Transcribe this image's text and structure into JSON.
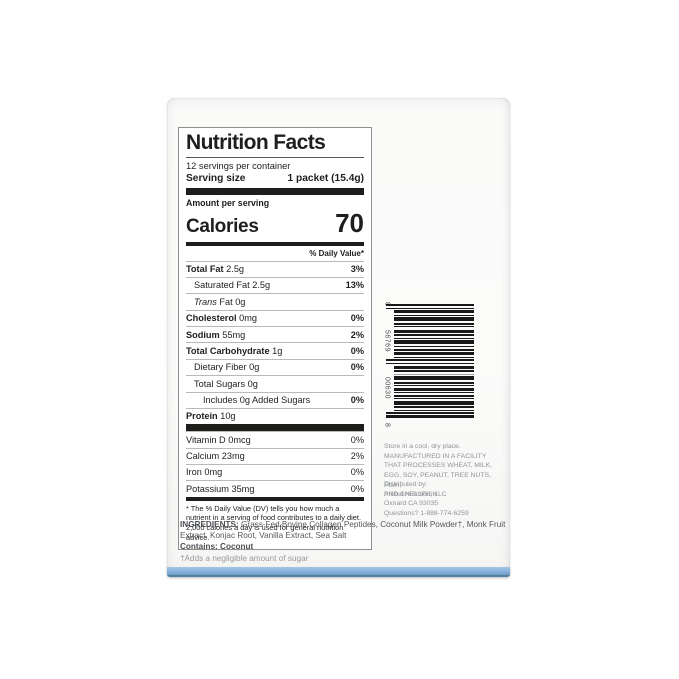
{
  "colors": {
    "accent_blue": "#85b2db",
    "accent_blue_dark": "#54809f",
    "label_ink": "#1e1e1c",
    "fine_print_gray": "#8f9498"
  },
  "package": {
    "nutrition_label": {
      "title": "Nutrition Facts",
      "servings_per_container": "12 servings per container",
      "serving_size_label": "Serving size",
      "serving_size_value": "1 packet (15.4g)",
      "amount_per_serving": "Amount per serving",
      "calories_label": "Calories",
      "calories_value": "70",
      "daily_value_header": "% Daily Value*",
      "macronutrients": [
        {
          "name": "Total Fat",
          "amount": "2.5g",
          "dv": "3%",
          "name_bold": true,
          "dv_bold": true,
          "indent": 0
        },
        {
          "name": "Saturated Fat",
          "amount": "2.5g",
          "dv": "13%",
          "name_bold": false,
          "dv_bold": true,
          "indent": 1
        },
        {
          "name": "Trans",
          "amount": "Fat 0g",
          "dv": "",
          "name_bold": false,
          "italic_name": true,
          "indent": 1
        },
        {
          "name": "Cholesterol",
          "amount": "0mg",
          "dv": "0%",
          "name_bold": true,
          "dv_bold": true,
          "indent": 0
        },
        {
          "name": "Sodium",
          "amount": "55mg",
          "dv": "2%",
          "name_bold": true,
          "dv_bold": true,
          "indent": 0
        },
        {
          "name": "Total Carbohydrate",
          "amount": "1g",
          "dv": "0%",
          "name_bold": true,
          "dv_bold": true,
          "indent": 0
        },
        {
          "name": "Dietary Fiber",
          "amount": "0g",
          "dv": "0%",
          "name_bold": false,
          "dv_bold": true,
          "indent": 1
        },
        {
          "name": "Total Sugars",
          "amount": "0g",
          "dv": "",
          "name_bold": false,
          "indent": 1
        },
        {
          "name": "Includes 0g Added Sugars",
          "amount": "",
          "dv": "0%",
          "name_bold": false,
          "dv_bold": true,
          "indent": 2
        },
        {
          "name": "Protein",
          "amount": "10g",
          "dv": "",
          "name_bold": true,
          "indent": 0
        }
      ],
      "micronutrients": [
        {
          "name": "Vitamin D",
          "amount": "0mcg",
          "dv": "0%",
          "name_bold": false,
          "dv_bold": false,
          "indent": 0
        },
        {
          "name": "Calcium",
          "amount": "23mg",
          "dv": "2%",
          "name_bold": false,
          "dv_bold": false,
          "indent": 0
        },
        {
          "name": "Iron",
          "amount": "0mg",
          "dv": "0%",
          "name_bold": false,
          "dv_bold": false,
          "indent": 0
        },
        {
          "name": "Potassium",
          "amount": "35mg",
          "dv": "0%",
          "name_bold": false,
          "dv_bold": false,
          "indent": 0
        }
      ],
      "footnote": "* The % Daily Value (DV) tells you how much a nutrient in a serving of food contributes to a daily diet. 2,000 calories a day is used for general nutrition advice."
    },
    "barcode": {
      "digits": [
        "8",
        "56769",
        "00630",
        "8"
      ],
      "bars": [
        {
          "w": 2,
          "g": 2,
          "e": 1
        },
        {
          "w": 1,
          "g": 1,
          "e": 1
        },
        {
          "w": 3,
          "g": 2
        },
        {
          "w": 1,
          "g": 1
        },
        {
          "w": 4,
          "g": 2
        },
        {
          "w": 2,
          "g": 1
        },
        {
          "w": 1,
          "g": 3
        },
        {
          "w": 3,
          "g": 1
        },
        {
          "w": 2,
          "g": 2
        },
        {
          "w": 1,
          "g": 1
        },
        {
          "w": 4,
          "g": 2
        },
        {
          "w": 1,
          "g": 2
        },
        {
          "w": 2,
          "g": 1
        },
        {
          "w": 3,
          "g": 2
        },
        {
          "w": 1,
          "g": 1
        },
        {
          "w": 2,
          "g": 2,
          "e": 1
        },
        {
          "w": 1,
          "g": 2,
          "e": 1
        },
        {
          "w": 3,
          "g": 1
        },
        {
          "w": 2,
          "g": 2
        },
        {
          "w": 1,
          "g": 1,
          "c": 1
        },
        {
          "w": 4,
          "g": 2
        },
        {
          "w": 2,
          "g": 1
        },
        {
          "w": 1,
          "g": 2
        },
        {
          "w": 3,
          "g": 1
        },
        {
          "w": 1,
          "g": 2
        },
        {
          "w": 2,
          "g": 1
        },
        {
          "w": 1,
          "g": 2
        },
        {
          "w": 4,
          "g": 1
        },
        {
          "w": 2,
          "g": 2
        },
        {
          "w": 1,
          "g": 1
        },
        {
          "w": 2,
          "g": 1,
          "e": 1
        },
        {
          "w": 3,
          "g": 0,
          "e": 1
        }
      ]
    },
    "storage_lines": [
      "Store in a cool, dry place.",
      "MANUFACTURED IN A FACILITY",
      "THAT PROCESSES WHEAT, MILK,",
      "EGG, SOY, PEANUT, TREE NUTS, FISH,",
      "AND SHELLFISH"
    ],
    "distributor_lines": [
      "Distributed by:",
      "Primal Nutrition, LLC",
      "Oxnard CA 93035",
      "Questions? 1-888-774-6259"
    ],
    "ingredients_label": "INGREDIENTS:",
    "ingredients_text": "Grass-Fed Bovine Collagen Peptides, Coconut Milk Powder†, Monk Fruit Extract, Konjac Root, Vanilla Extract, Sea Salt",
    "contains_label": "Contains:",
    "contains_text": "Coconut",
    "sugar_footnote": "†Adds a negligible amount of sugar"
  }
}
